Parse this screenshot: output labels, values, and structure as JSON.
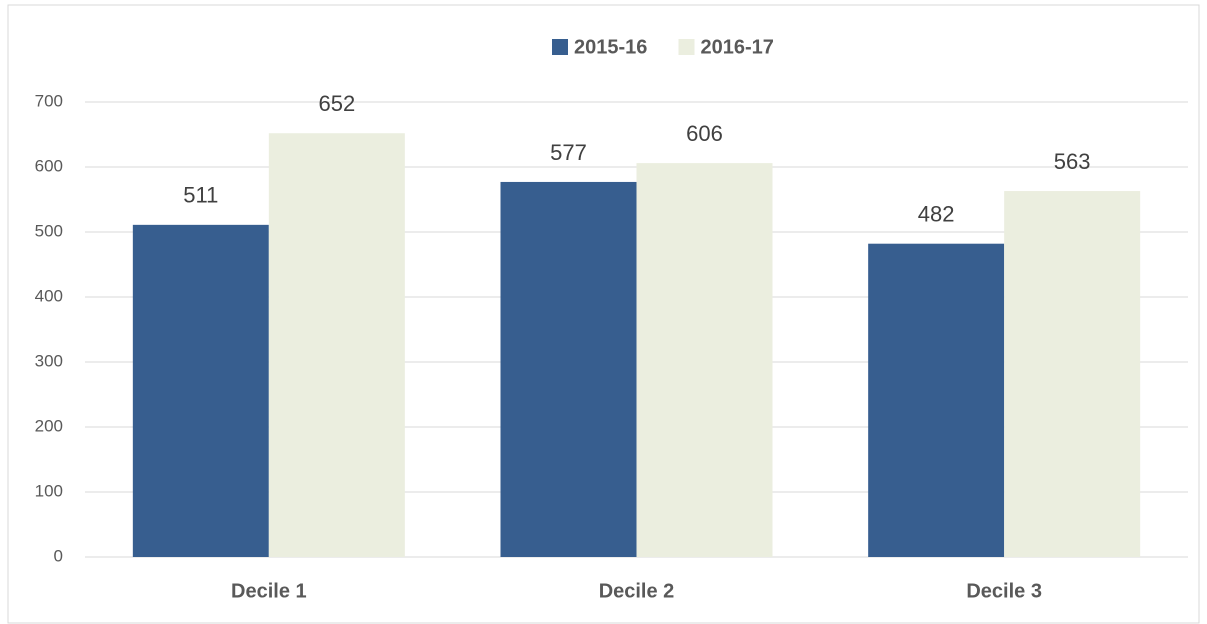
{
  "chart_data": {
    "type": "bar",
    "categories": [
      "Decile 1",
      "Decile 2",
      "Decile 3"
    ],
    "series": [
      {
        "name": "2015-16",
        "color": "#375e8f",
        "values": [
          511,
          577,
          482
        ]
      },
      {
        "name": "2016-17",
        "color": "#ebeedf",
        "values": [
          652,
          606,
          563
        ]
      }
    ],
    "ylim": [
      0,
      700
    ],
    "yticks": [
      0,
      100,
      200,
      300,
      400,
      500,
      600,
      700
    ],
    "grid": true,
    "legend": "top"
  }
}
